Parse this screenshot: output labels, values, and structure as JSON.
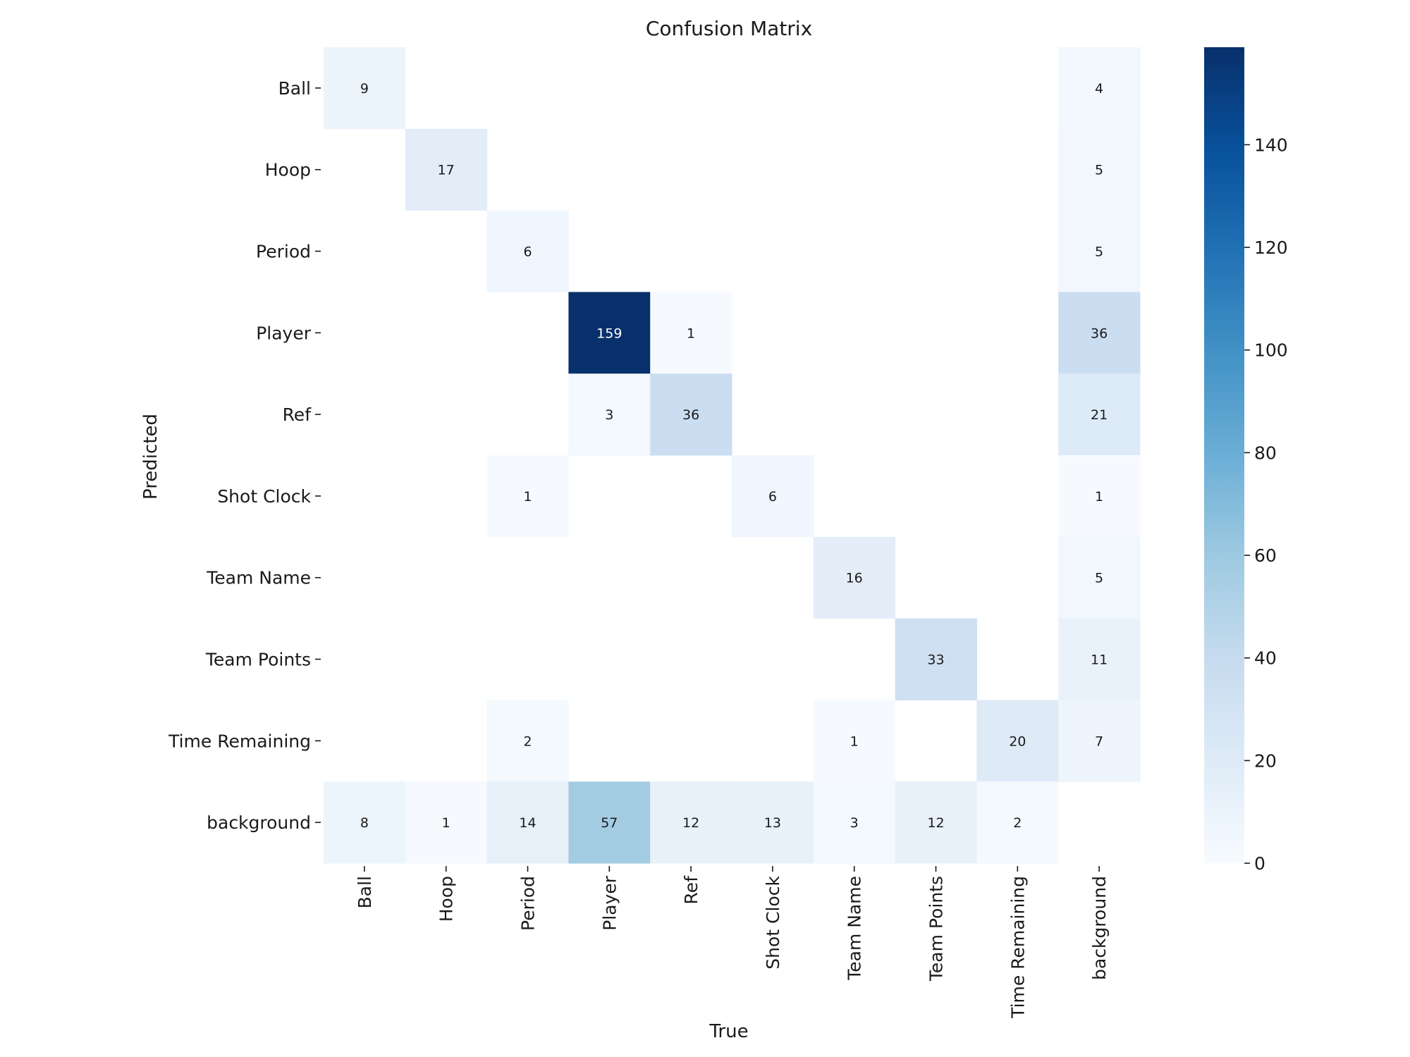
{
  "chart_data": {
    "type": "heatmap",
    "title": "Confusion Matrix",
    "xlabel": "True",
    "ylabel": "Predicted",
    "x_categories": [
      "Ball",
      "Hoop",
      "Period",
      "Player",
      "Ref",
      "Shot Clock",
      "Team Name",
      "Team Points",
      "Time Remaining",
      "background"
    ],
    "y_categories": [
      "Ball",
      "Hoop",
      "Period",
      "Player",
      "Ref",
      "Shot Clock",
      "Team Name",
      "Team Points",
      "Time Remaining",
      "background"
    ],
    "values": [
      [
        9,
        null,
        null,
        null,
        null,
        null,
        null,
        null,
        null,
        4
      ],
      [
        null,
        17,
        null,
        null,
        null,
        null,
        null,
        null,
        null,
        5
      ],
      [
        null,
        null,
        6,
        null,
        null,
        null,
        null,
        null,
        null,
        5
      ],
      [
        null,
        null,
        null,
        159,
        1,
        null,
        null,
        null,
        null,
        36
      ],
      [
        null,
        null,
        null,
        3,
        36,
        null,
        null,
        null,
        null,
        21
      ],
      [
        null,
        null,
        1,
        null,
        null,
        6,
        null,
        null,
        null,
        1
      ],
      [
        null,
        null,
        null,
        null,
        null,
        null,
        16,
        null,
        null,
        5
      ],
      [
        null,
        null,
        null,
        null,
        null,
        null,
        null,
        33,
        null,
        11
      ],
      [
        null,
        null,
        2,
        null,
        null,
        null,
        1,
        null,
        20,
        7
      ],
      [
        8,
        1,
        14,
        57,
        12,
        13,
        3,
        12,
        2,
        null
      ]
    ],
    "colorbar": {
      "min": 0,
      "max": 159,
      "ticks": [
        0,
        20,
        40,
        60,
        80,
        100,
        120,
        140
      ],
      "colormap": "Blues"
    }
  }
}
